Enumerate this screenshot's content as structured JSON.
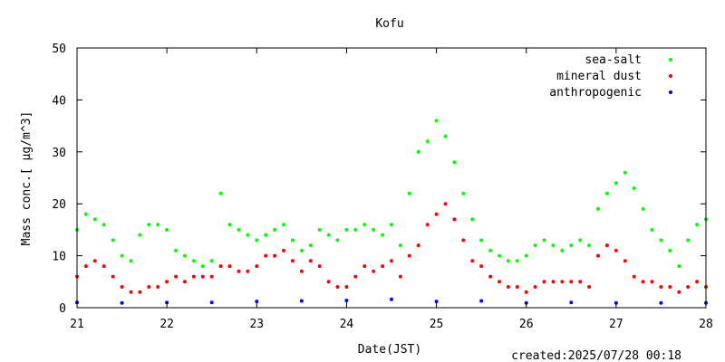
{
  "chart_data": {
    "type": "scatter",
    "title": "Kofu",
    "xlabel": "Date(JST)",
    "ylabel": "Mass conc.[ μg/m^3]",
    "x_ticks": [
      "21",
      "22",
      "23",
      "24",
      "25",
      "26",
      "27",
      "28"
    ],
    "y_ticks": [
      "0",
      "10",
      "20",
      "30",
      "40",
      "50"
    ],
    "xlim": [
      21,
      28
    ],
    "ylim": [
      0,
      50
    ],
    "legend_position": "top-right",
    "grid": false,
    "footer": "created:2025/07/28 00:18",
    "series": [
      {
        "name": "sea-salt",
        "color": "#00ff00",
        "x": [
          21.0,
          21.1,
          21.2,
          21.3,
          21.4,
          21.5,
          21.6,
          21.7,
          21.8,
          21.9,
          22.0,
          22.1,
          22.2,
          22.3,
          22.4,
          22.5,
          22.6,
          22.7,
          22.8,
          22.9,
          23.0,
          23.1,
          23.2,
          23.3,
          23.4,
          23.5,
          23.6,
          23.7,
          23.8,
          23.9,
          24.0,
          24.1,
          24.2,
          24.3,
          24.4,
          24.5,
          24.6,
          24.7,
          24.8,
          24.9,
          25.0,
          25.1,
          25.2,
          25.3,
          25.4,
          25.5,
          25.6,
          25.7,
          25.8,
          25.9,
          26.0,
          26.1,
          26.2,
          26.3,
          26.4,
          26.5,
          26.6,
          26.7,
          26.8,
          26.9,
          27.0,
          27.1,
          27.2,
          27.3,
          27.4,
          27.5,
          27.6,
          27.7,
          27.8,
          27.9,
          28.0
        ],
        "y": [
          15,
          18,
          17,
          16,
          13,
          10,
          9,
          14,
          16,
          16,
          15,
          11,
          10,
          9,
          8,
          9,
          22,
          16,
          15,
          14,
          13,
          14,
          15,
          16,
          13,
          11,
          12,
          15,
          14,
          13,
          15,
          15,
          16,
          15,
          14,
          16,
          12,
          22,
          30,
          32,
          36,
          33,
          28,
          22,
          17,
          13,
          11,
          10,
          9,
          9,
          10,
          12,
          13,
          12,
          11,
          12,
          13,
          12,
          19,
          22,
          24,
          26,
          23,
          19,
          15,
          13,
          11,
          8,
          13,
          16,
          17
        ]
      },
      {
        "name": "mineral dust",
        "color": "#ff0000",
        "x": [
          21.0,
          21.1,
          21.2,
          21.3,
          21.4,
          21.5,
          21.6,
          21.7,
          21.8,
          21.9,
          22.0,
          22.1,
          22.2,
          22.3,
          22.4,
          22.5,
          22.6,
          22.7,
          22.8,
          22.9,
          23.0,
          23.1,
          23.2,
          23.3,
          23.4,
          23.5,
          23.6,
          23.7,
          23.8,
          23.9,
          24.0,
          24.1,
          24.2,
          24.3,
          24.4,
          24.5,
          24.6,
          24.7,
          24.8,
          24.9,
          25.0,
          25.1,
          25.2,
          25.3,
          25.4,
          25.5,
          25.6,
          25.7,
          25.8,
          25.9,
          26.0,
          26.1,
          26.2,
          26.3,
          26.4,
          26.5,
          26.6,
          26.7,
          26.8,
          26.9,
          27.0,
          27.1,
          27.2,
          27.3,
          27.4,
          27.5,
          27.6,
          27.7,
          27.8,
          27.9,
          28.0
        ],
        "y": [
          6,
          8,
          9,
          8,
          6,
          4,
          3,
          3,
          4,
          4,
          5,
          6,
          5,
          6,
          6,
          6,
          8,
          8,
          7,
          7,
          8,
          10,
          10,
          11,
          9,
          7,
          9,
          8,
          5,
          4,
          4,
          6,
          8,
          7,
          8,
          9,
          6,
          10,
          12,
          16,
          18,
          20,
          17,
          13,
          9,
          8,
          6,
          5,
          4,
          4,
          3,
          4,
          5,
          5,
          5,
          5,
          5,
          4,
          10,
          12,
          11,
          9,
          6,
          5,
          5,
          4,
          4,
          3,
          4,
          5,
          4
        ]
      },
      {
        "name": "anthropogenic",
        "color": "#0000ff",
        "x": [
          21.0,
          21.5,
          22.0,
          22.5,
          23.0,
          23.5,
          24.0,
          24.5,
          25.0,
          25.5,
          26.0,
          26.5,
          27.0,
          27.5,
          28.0
        ],
        "y": [
          1.0,
          0.9,
          1.0,
          1.0,
          1.2,
          1.3,
          1.4,
          1.6,
          1.2,
          1.3,
          0.9,
          1.0,
          0.9,
          0.9,
          0.9
        ]
      }
    ]
  }
}
